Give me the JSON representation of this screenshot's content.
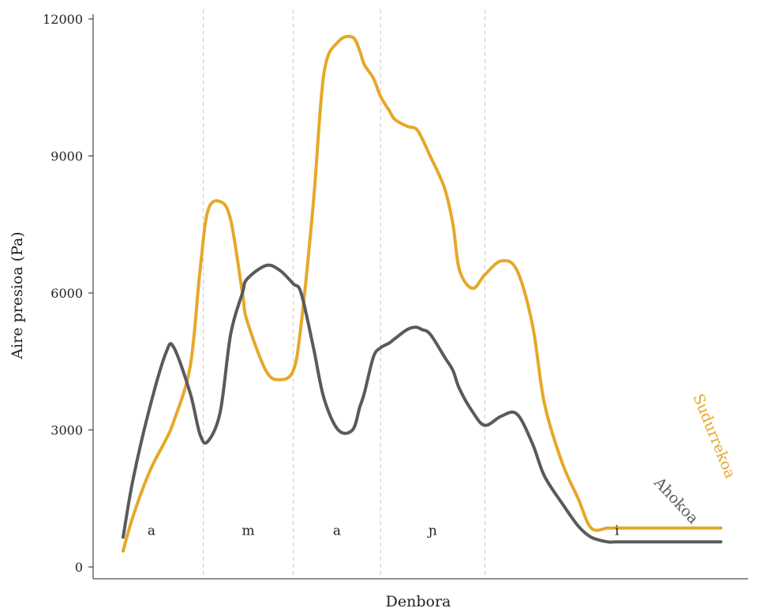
{
  "chart_data": {
    "type": "line",
    "title": "",
    "xlabel": "Denbora",
    "ylabel": "Aire presioa (Pa)",
    "ylim": [
      0,
      12000
    ],
    "xlim": [
      0,
      100
    ],
    "yticks": [
      0,
      3000,
      6000,
      9000,
      12000
    ],
    "ytick_labels": [
      "0",
      "3000",
      "6000",
      "9000",
      "12000"
    ],
    "grid": false,
    "segments": [
      {
        "label": "a",
        "start": 0,
        "end": 16.9
      },
      {
        "label": "m",
        "start": 16.9,
        "end": 30.7
      },
      {
        "label": "a",
        "start": 30.7,
        "end": 44.1
      },
      {
        "label": "ɲ",
        "start": 44.1,
        "end": 60.1
      },
      {
        "label": "i",
        "start": 60.1,
        "end": 100
      }
    ],
    "dividers": [
      16.9,
      30.7,
      44.1,
      60.1
    ],
    "x": [
      4.6,
      6.1,
      8.7,
      11.2,
      12.4,
      14.9,
      16.4,
      17.6,
      19.5,
      21.1,
      22.9,
      23.6,
      26.5,
      28.6,
      30.7,
      31.9,
      33.8,
      35.4,
      37.6,
      39.8,
      40.9,
      41.6,
      43.0,
      44.1,
      45.4,
      46.3,
      48.2,
      49.5,
      50.4,
      51.7,
      53.9,
      55.2,
      56.2,
      58.2,
      60.1,
      62.6,
      65.0,
      67.4,
      69.2,
      71.9,
      74.4,
      76.4,
      78.9,
      80.1,
      81.8,
      82.7,
      84.0,
      85.3,
      87.1,
      88.8,
      91.3,
      93.1,
      96.3,
      98.7,
      101.2
    ],
    "series": [
      {
        "name": "Ahokoa",
        "color": "#5a5a5a",
        "values": [
          650,
          1900,
          3500,
          4700,
          4800,
          3800,
          2900,
          2750,
          3400,
          5100,
          6000,
          6300,
          6600,
          6500,
          6200,
          6000,
          4800,
          3700,
          3000,
          3000,
          3500,
          3800,
          4600,
          4800,
          4900,
          5000,
          5200,
          5250,
          5200,
          5100,
          4600,
          4300,
          3900,
          3400,
          3100,
          3300,
          3350,
          2700,
          2000,
          1400,
          900,
          650,
          550,
          550,
          550,
          550,
          550,
          550,
          550,
          550,
          550,
          550,
          550,
          550,
          550
        ]
      },
      {
        "name": "Sudurrekoa",
        "color": "#e5a82a",
        "values": [
          350,
          1100,
          2100,
          2800,
          3200,
          4400,
          6500,
          7800,
          8000,
          7600,
          6000,
          5400,
          4300,
          4100,
          4300,
          5300,
          8000,
          10800,
          11500,
          11600,
          11300,
          11000,
          10700,
          10300,
          10000,
          9800,
          9650,
          9600,
          9400,
          9000,
          8300,
          7500,
          6500,
          6100,
          6400,
          6700,
          6500,
          5300,
          3600,
          2300,
          1500,
          850,
          850,
          850,
          850,
          850,
          850,
          850,
          850,
          850,
          850,
          850,
          850,
          850,
          850
        ]
      }
    ]
  }
}
